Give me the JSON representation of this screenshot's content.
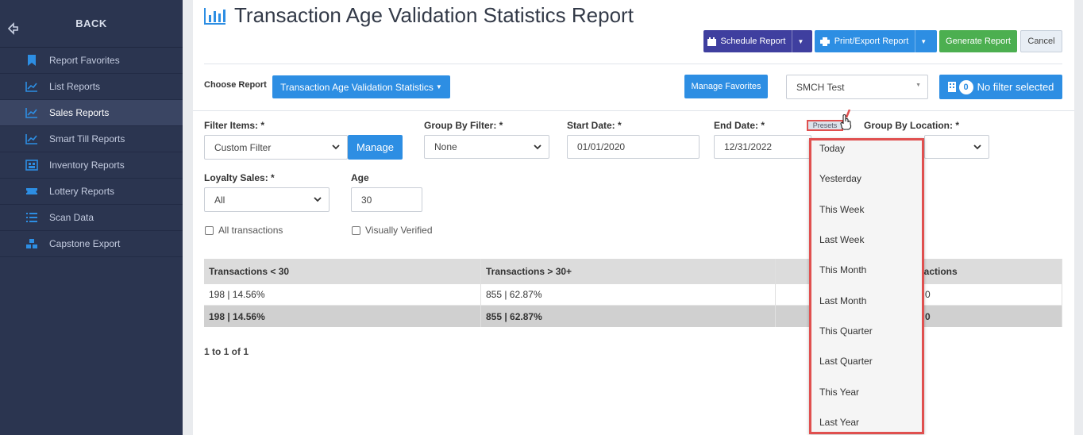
{
  "sidebar": {
    "back_label": "BACK",
    "items": [
      {
        "label": "Report Favorites",
        "icon": "bookmark-icon"
      },
      {
        "label": "List Reports",
        "icon": "line-chart-icon"
      },
      {
        "label": "Sales Reports",
        "icon": "line-chart-icon",
        "active": true
      },
      {
        "label": "Smart Till Reports",
        "icon": "line-chart-icon"
      },
      {
        "label": "Inventory Reports",
        "icon": "inventory-icon"
      },
      {
        "label": "Lottery Reports",
        "icon": "ticket-icon"
      },
      {
        "label": "Scan Data",
        "icon": "list-icon"
      },
      {
        "label": "Capstone Export",
        "icon": "cubes-icon"
      }
    ]
  },
  "header": {
    "title": "Transaction Age Validation Statistics Report",
    "buttons": {
      "schedule": "Schedule Report",
      "print_export": "Print/Export Report",
      "generate": "Generate Report",
      "cancel": "Cancel"
    }
  },
  "choose_report": {
    "label": "Choose Report",
    "selected": "Transaction Age Validation Statistics",
    "manage_favorites": "Manage Favorites",
    "location": "SMCH Test",
    "filter_count": "0",
    "filter_label": "No filter selected"
  },
  "filters": {
    "filter_items_label": "Filter Items: *",
    "filter_items_value": "Custom Filter",
    "manage_label": "Manage",
    "group_by_filter_label": "Group By Filter: *",
    "group_by_filter_value": "None",
    "start_date_label": "Start Date: *",
    "start_date_value": "01/01/2020",
    "end_date_label": "End Date: *",
    "end_date_value": "12/31/2022",
    "presets_label": "Presets",
    "group_by_location_label": "Group By Location: *",
    "loyalty_label": "Loyalty Sales: *",
    "loyalty_value": "All",
    "age_label": "Age",
    "age_value": "30",
    "all_transactions_label": "All transactions",
    "visually_verified_label": "Visually Verified"
  },
  "table": {
    "headers": [
      "Transactions < 30",
      "Transactions > 30+",
      "sactions"
    ],
    "rows": [
      [
        "198 | 14.56%",
        "855 | 62.87%",
        "0"
      ]
    ],
    "totals": [
      "198 | 14.56%",
      "855 | 62.87%",
      "0"
    ]
  },
  "pager": "1 to 1 of 1",
  "presets": [
    "Today",
    "Yesterday",
    "This Week",
    "Last Week",
    "This Month",
    "Last Month",
    "This Quarter",
    "Last Quarter",
    "This Year",
    "Last Year"
  ],
  "colors": {
    "sidebar_bg": "#2b3550",
    "primary": "#2d8ee3",
    "indigo": "#3f3f9f",
    "success": "#4caf50",
    "highlight": "#e0504f"
  }
}
